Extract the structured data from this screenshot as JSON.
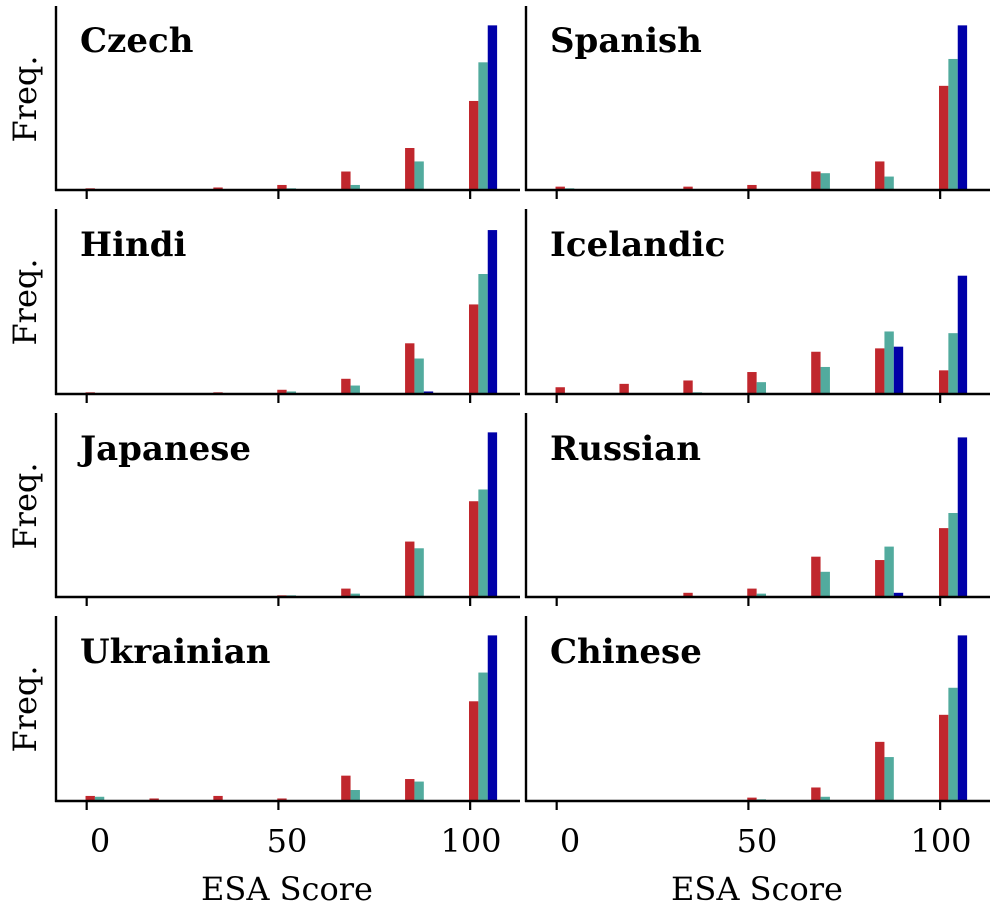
{
  "colors": {
    "series_1": "#c0272d",
    "series_2": "#52ab9e",
    "series_3": "#0000a8",
    "axis": "#000000",
    "background": "#ffffff"
  },
  "shared": {
    "ylabel": "Freq.",
    "xlabel": "ESA Score",
    "xticks": [
      0,
      50,
      100
    ],
    "xtick_labels": [
      "0",
      "50",
      "100"
    ],
    "xlim": [
      -8,
      113
    ],
    "ylim": [
      0,
      1
    ],
    "bins": [
      0,
      16.67,
      33.33,
      50,
      66.67,
      83.33,
      100
    ]
  },
  "chart_data": [
    {
      "type": "bar",
      "title": "Czech",
      "row": 0,
      "col": 0,
      "series": [
        {
          "name": "series_1",
          "values": [
            0.01,
            0,
            0.015,
            0.03,
            0.11,
            0.25,
            0.53
          ]
        },
        {
          "name": "series_2",
          "values": [
            0,
            0,
            0,
            0.01,
            0.03,
            0.17,
            0.76
          ]
        },
        {
          "name": "series_3",
          "values": [
            0,
            0,
            0,
            0,
            0,
            0.005,
            0.98
          ]
        }
      ]
    },
    {
      "type": "bar",
      "title": "Spanish",
      "row": 0,
      "col": 1,
      "series": [
        {
          "name": "series_1",
          "values": [
            0.02,
            0,
            0.02,
            0.03,
            0.11,
            0.17,
            0.62
          ]
        },
        {
          "name": "series_2",
          "values": [
            0.01,
            0.005,
            0,
            0,
            0.1,
            0.08,
            0.78
          ]
        },
        {
          "name": "series_3",
          "values": [
            0,
            0,
            0,
            0,
            0,
            0,
            0.98
          ]
        }
      ]
    },
    {
      "type": "bar",
      "title": "Hindi",
      "row": 1,
      "col": 0,
      "series": [
        {
          "name": "series_1",
          "values": [
            0.01,
            0.005,
            0.01,
            0.025,
            0.09,
            0.3,
            0.53
          ]
        },
        {
          "name": "series_2",
          "values": [
            0,
            0,
            0,
            0.015,
            0.05,
            0.21,
            0.71
          ]
        },
        {
          "name": "series_3",
          "values": [
            0,
            0,
            0,
            0,
            0,
            0.015,
            0.97
          ]
        }
      ]
    },
    {
      "type": "bar",
      "title": "Icelandic",
      "row": 1,
      "col": 1,
      "series": [
        {
          "name": "series_1",
          "values": [
            0.04,
            0.06,
            0.08,
            0.13,
            0.25,
            0.27,
            0.14
          ]
        },
        {
          "name": "series_2",
          "values": [
            0,
            0,
            0.01,
            0.07,
            0.16,
            0.37,
            0.36
          ]
        },
        {
          "name": "series_3",
          "values": [
            0,
            0,
            0,
            0,
            0,
            0.28,
            0.7
          ]
        }
      ]
    },
    {
      "type": "bar",
      "title": "Japanese",
      "row": 2,
      "col": 0,
      "series": [
        {
          "name": "series_1",
          "values": [
            0,
            0,
            0,
            0.01,
            0.05,
            0.33,
            0.57
          ]
        },
        {
          "name": "series_2",
          "values": [
            0,
            0,
            0,
            0.01,
            0.02,
            0.29,
            0.64
          ]
        },
        {
          "name": "series_3",
          "values": [
            0,
            0,
            0,
            0,
            0,
            0,
            0.98
          ]
        }
      ]
    },
    {
      "type": "bar",
      "title": "Russian",
      "row": 2,
      "col": 1,
      "series": [
        {
          "name": "series_1",
          "values": [
            0.005,
            0.005,
            0.025,
            0.05,
            0.24,
            0.22,
            0.41
          ]
        },
        {
          "name": "series_2",
          "values": [
            0,
            0,
            0,
            0.02,
            0.15,
            0.3,
            0.5
          ]
        },
        {
          "name": "series_3",
          "values": [
            0,
            0,
            0,
            0,
            0,
            0.025,
            0.95
          ]
        }
      ]
    },
    {
      "type": "bar",
      "title": "Ukrainian",
      "row": 3,
      "col": 0,
      "series": [
        {
          "name": "series_1",
          "values": [
            0.03,
            0.015,
            0.03,
            0.015,
            0.15,
            0.13,
            0.59
          ]
        },
        {
          "name": "series_2",
          "values": [
            0.025,
            0,
            0,
            0,
            0.065,
            0.115,
            0.76
          ]
        },
        {
          "name": "series_3",
          "values": [
            0,
            0,
            0,
            0,
            0,
            0,
            0.98
          ]
        }
      ]
    },
    {
      "type": "bar",
      "title": "Chinese",
      "row": 3,
      "col": 1,
      "series": [
        {
          "name": "series_1",
          "values": [
            0,
            0,
            0,
            0.02,
            0.08,
            0.35,
            0.51
          ]
        },
        {
          "name": "series_2",
          "values": [
            0,
            0,
            0,
            0.01,
            0.025,
            0.26,
            0.67
          ]
        },
        {
          "name": "series_3",
          "values": [
            0,
            0,
            0,
            0,
            0,
            0,
            0.98
          ]
        }
      ]
    }
  ]
}
